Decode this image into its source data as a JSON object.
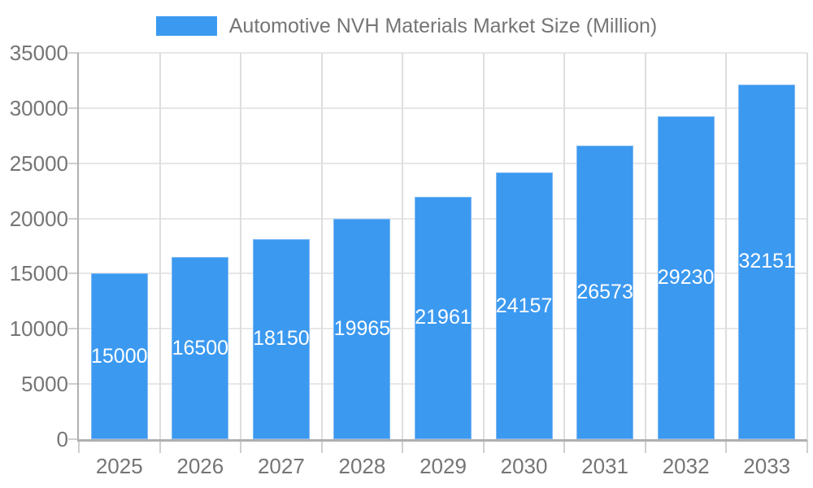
{
  "legend": {
    "position": "top-center",
    "items": [
      {
        "label": "Automotive NVH Materials Market Size (Million)",
        "swatch": "bar-color"
      }
    ]
  },
  "colors": {
    "bar": "#3B99F0",
    "bar_edge": "#7FB9F4",
    "bar_label_text": "#FFFFFF",
    "axis_text": "#757575",
    "grid_line_h": "#E7E7E7",
    "grid_line_v": "#DEDEDE",
    "tick_line": "#CFCFCF",
    "axis_line": "#B0B0B0",
    "background": "#FFFFFF"
  },
  "chart_data": {
    "type": "bar",
    "title": "Automotive NVH Materials Market Size (Million)",
    "categories": [
      "2025",
      "2026",
      "2027",
      "2028",
      "2029",
      "2030",
      "2031",
      "2032",
      "2033"
    ],
    "values": [
      15000,
      16500,
      18150,
      19965,
      21961,
      24157,
      26573,
      29230,
      32151
    ],
    "series": [
      {
        "name": "Automotive NVH Materials Market Size (Million)",
        "values": [
          15000,
          16500,
          18150,
          19965,
          21961,
          24157,
          26573,
          29230,
          32151
        ]
      }
    ],
    "xlabel": "",
    "ylabel": "",
    "ylim": [
      0,
      35000
    ],
    "yticks": [
      0,
      5000,
      10000,
      15000,
      20000,
      25000,
      30000,
      35000
    ],
    "grid": "horizontal-and-category-boundaries",
    "legend_position": "top-center",
    "value_labels": "inside-center-white"
  }
}
